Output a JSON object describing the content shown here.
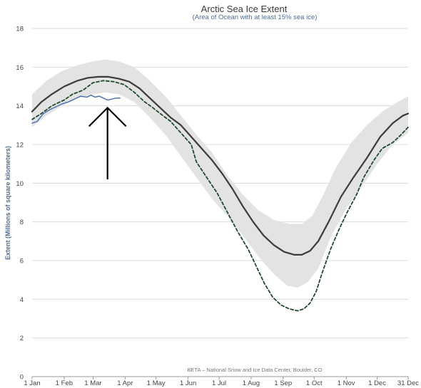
{
  "chart_data": {
    "type": "line",
    "title": "Arctic Sea Ice Extent",
    "subtitle": "(Area of Ocean with at least 15% sea ice)",
    "ylabel": "Extent (Millions of square kilometers)",
    "xlabel": "",
    "credit": "BETA – National Snow and Ice Data Center, Boulder, CO",
    "ylim": [
      0,
      18
    ],
    "yticks": [
      0,
      2,
      4,
      6,
      8,
      10,
      12,
      14,
      16,
      18
    ],
    "xlim": [
      1,
      365
    ],
    "xticks": [
      {
        "label": "1 Jan",
        "day": 1
      },
      {
        "label": "1 Feb",
        "day": 32
      },
      {
        "label": "1 Mar",
        "day": 60
      },
      {
        "label": "1 Apr",
        "day": 91
      },
      {
        "label": "1 May",
        "day": 121
      },
      {
        "label": "1 Jun",
        "day": 152
      },
      {
        "label": "1 Jul",
        "day": 182
      },
      {
        "label": "1 Aug",
        "day": 213
      },
      {
        "label": "1 Sep",
        "day": 244
      },
      {
        "label": "1 Oct",
        "day": 274
      },
      {
        "label": "1 Nov",
        "day": 305
      },
      {
        "label": "1 Dec",
        "day": 335
      },
      {
        "label": "31 Dec",
        "day": 365
      }
    ],
    "grid": true,
    "band": {
      "upper": [
        [
          1,
          14.6
        ],
        [
          15,
          15.3
        ],
        [
          30,
          15.8
        ],
        [
          45,
          16.1
        ],
        [
          60,
          16.3
        ],
        [
          72,
          16.4
        ],
        [
          85,
          16.3
        ],
        [
          100,
          16.0
        ],
        [
          115,
          15.3
        ],
        [
          130,
          14.5
        ],
        [
          145,
          13.5
        ],
        [
          160,
          12.5
        ],
        [
          175,
          11.6
        ],
        [
          190,
          10.4
        ],
        [
          205,
          9.4
        ],
        [
          220,
          8.6
        ],
        [
          235,
          8.1
        ],
        [
          250,
          7.9
        ],
        [
          262,
          7.9
        ],
        [
          272,
          8.3
        ],
        [
          282,
          9.3
        ],
        [
          295,
          10.8
        ],
        [
          310,
          12.1
        ],
        [
          325,
          13.0
        ],
        [
          340,
          13.7
        ],
        [
          355,
          14.2
        ],
        [
          365,
          14.5
        ]
      ],
      "lower": [
        [
          1,
          12.9
        ],
        [
          15,
          13.5
        ],
        [
          30,
          14.0
        ],
        [
          45,
          14.4
        ],
        [
          60,
          14.6
        ],
        [
          72,
          14.7
        ],
        [
          85,
          14.6
        ],
        [
          100,
          14.2
        ],
        [
          115,
          13.4
        ],
        [
          130,
          12.5
        ],
        [
          145,
          11.4
        ],
        [
          160,
          10.3
        ],
        [
          175,
          9.2
        ],
        [
          190,
          8.3
        ],
        [
          205,
          7.3
        ],
        [
          220,
          6.2
        ],
        [
          235,
          5.3
        ],
        [
          248,
          4.7
        ],
        [
          258,
          4.6
        ],
        [
          268,
          4.9
        ],
        [
          278,
          5.6
        ],
        [
          290,
          7.2
        ],
        [
          305,
          8.7
        ],
        [
          320,
          9.8
        ],
        [
          335,
          11.0
        ],
        [
          350,
          12.0
        ],
        [
          365,
          12.6
        ]
      ]
    },
    "series": [
      {
        "color": "#3b3b3b",
        "dash": "none",
        "points": [
          [
            1,
            13.7
          ],
          [
            10,
            14.2
          ],
          [
            20,
            14.6
          ],
          [
            32,
            15.0
          ],
          [
            45,
            15.3
          ],
          [
            55,
            15.45
          ],
          [
            65,
            15.5
          ],
          [
            75,
            15.5
          ],
          [
            85,
            15.4
          ],
          [
            95,
            15.25
          ],
          [
            105,
            14.9
          ],
          [
            115,
            14.4
          ],
          [
            125,
            13.9
          ],
          [
            135,
            13.4
          ],
          [
            145,
            13.0
          ],
          [
            155,
            12.4
          ],
          [
            165,
            11.8
          ],
          [
            175,
            11.2
          ],
          [
            185,
            10.5
          ],
          [
            195,
            9.7
          ],
          [
            205,
            8.8
          ],
          [
            215,
            8.0
          ],
          [
            225,
            7.3
          ],
          [
            235,
            6.8
          ],
          [
            245,
            6.45
          ],
          [
            255,
            6.3
          ],
          [
            262,
            6.3
          ],
          [
            270,
            6.5
          ],
          [
            278,
            7.0
          ],
          [
            288,
            8.0
          ],
          [
            300,
            9.3
          ],
          [
            312,
            10.3
          ],
          [
            325,
            11.3
          ],
          [
            338,
            12.4
          ],
          [
            350,
            13.1
          ],
          [
            360,
            13.5
          ],
          [
            365,
            13.6
          ]
        ]
      },
      {
        "color": "#1f4a2a",
        "dash": "4,3",
        "points": [
          [
            1,
            13.3
          ],
          [
            10,
            13.6
          ],
          [
            20,
            14.0
          ],
          [
            32,
            14.3
          ],
          [
            40,
            14.6
          ],
          [
            50,
            14.8
          ],
          [
            55,
            15.0
          ],
          [
            60,
            15.2
          ],
          [
            70,
            15.3
          ],
          [
            80,
            15.25
          ],
          [
            90,
            15.1
          ],
          [
            100,
            14.7
          ],
          [
            110,
            14.2
          ],
          [
            118,
            13.9
          ],
          [
            125,
            13.6
          ],
          [
            135,
            13.2
          ],
          [
            145,
            12.6
          ],
          [
            155,
            12.0
          ],
          [
            160,
            11.1
          ],
          [
            170,
            10.3
          ],
          [
            180,
            9.5
          ],
          [
            190,
            8.5
          ],
          [
            200,
            7.5
          ],
          [
            210,
            6.6
          ],
          [
            218,
            5.7
          ],
          [
            226,
            4.8
          ],
          [
            234,
            4.1
          ],
          [
            242,
            3.7
          ],
          [
            250,
            3.5
          ],
          [
            258,
            3.4
          ],
          [
            264,
            3.5
          ],
          [
            270,
            3.8
          ],
          [
            276,
            4.4
          ],
          [
            282,
            5.4
          ],
          [
            290,
            6.6
          ],
          [
            298,
            7.6
          ],
          [
            306,
            8.5
          ],
          [
            315,
            9.4
          ],
          [
            322,
            10.3
          ],
          [
            332,
            11.2
          ],
          [
            340,
            11.8
          ],
          [
            350,
            12.1
          ],
          [
            358,
            12.5
          ],
          [
            365,
            12.9
          ]
        ]
      },
      {
        "color": "#4f73b5",
        "dash": "none",
        "points": [
          [
            1,
            13.1
          ],
          [
            6,
            13.2
          ],
          [
            12,
            13.6
          ],
          [
            18,
            13.8
          ],
          [
            24,
            13.95
          ],
          [
            30,
            14.1
          ],
          [
            36,
            14.2
          ],
          [
            42,
            14.35
          ],
          [
            48,
            14.5
          ],
          [
            54,
            14.45
          ],
          [
            58,
            14.55
          ],
          [
            62,
            14.45
          ],
          [
            66,
            14.5
          ],
          [
            70,
            14.4
          ],
          [
            74,
            14.3
          ],
          [
            78,
            14.35
          ],
          [
            82,
            14.4
          ],
          [
            86,
            14.4
          ]
        ]
      }
    ],
    "annotation": {
      "type": "up-arrow",
      "day": 74,
      "from_value": 10.2,
      "to_value": 13.9,
      "color": "#000000"
    }
  }
}
